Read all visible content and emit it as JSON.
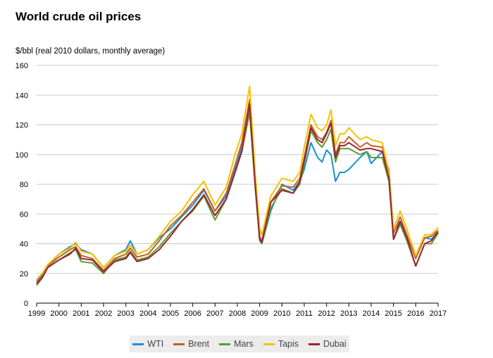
{
  "chart_data": {
    "type": "line",
    "title": "World crude oil prices",
    "ylabel": "$/bbl (real 2010 dollars, monthly average)",
    "xlabel": "",
    "ylim": [
      0,
      160
    ],
    "yticks": [
      0,
      20,
      40,
      60,
      80,
      100,
      120,
      140,
      160
    ],
    "xlim": [
      1999,
      2017
    ],
    "xticks": [
      "1999",
      "2000",
      "2001",
      "2002",
      "2003",
      "2004",
      "2005",
      "2006",
      "2007",
      "2008",
      "2009",
      "2010",
      "2011",
      "2012",
      "2013",
      "2014",
      "2015",
      "2016",
      "2017"
    ],
    "grid": true,
    "legend_position": "bottom",
    "series": [
      {
        "name": "WTI",
        "color": "#1a8fd6",
        "points": [
          [
            1999,
            15
          ],
          [
            1999.25,
            19
          ],
          [
            1999.5,
            25
          ],
          [
            2000,
            33
          ],
          [
            2000.5,
            38
          ],
          [
            2000.75,
            40
          ],
          [
            2001,
            36
          ],
          [
            2001.5,
            33
          ],
          [
            2002,
            24
          ],
          [
            2002.5,
            32
          ],
          [
            2003,
            36
          ],
          [
            2003.2,
            42
          ],
          [
            2003.5,
            33
          ],
          [
            2004,
            36
          ],
          [
            2004.5,
            44
          ],
          [
            2005,
            50
          ],
          [
            2005.5,
            58
          ],
          [
            2006,
            66
          ],
          [
            2006.5,
            76
          ],
          [
            2007,
            62
          ],
          [
            2007.5,
            72
          ],
          [
            2007.9,
            90
          ],
          [
            2008.2,
            105
          ],
          [
            2008.55,
            133
          ],
          [
            2008.8,
            80
          ],
          [
            2009,
            44
          ],
          [
            2009.1,
            40
          ],
          [
            2009.5,
            62
          ],
          [
            2010,
            80
          ],
          [
            2010.5,
            76
          ],
          [
            2010.8,
            82
          ],
          [
            2011,
            90
          ],
          [
            2011.3,
            108
          ],
          [
            2011.6,
            98
          ],
          [
            2011.8,
            95
          ],
          [
            2012,
            103
          ],
          [
            2012.2,
            100
          ],
          [
            2012.4,
            82
          ],
          [
            2012.6,
            88
          ],
          [
            2012.8,
            88
          ],
          [
            2013,
            90
          ],
          [
            2013.5,
            98
          ],
          [
            2013.8,
            102
          ],
          [
            2014,
            94
          ],
          [
            2014.5,
            102
          ],
          [
            2014.8,
            90
          ],
          [
            2015,
            48
          ],
          [
            2015.3,
            55
          ],
          [
            2015.6,
            45
          ],
          [
            2016,
            32
          ],
          [
            2016.4,
            44
          ],
          [
            2016.7,
            43
          ],
          [
            2017,
            48
          ]
        ]
      },
      {
        "name": "Brent",
        "color": "#c0622a",
        "points": [
          [
            1999,
            14
          ],
          [
            1999.25,
            18
          ],
          [
            1999.5,
            25
          ],
          [
            2000,
            31
          ],
          [
            2000.5,
            36
          ],
          [
            2000.75,
            38
          ],
          [
            2001,
            32
          ],
          [
            2001.5,
            30
          ],
          [
            2002,
            22
          ],
          [
            2002.5,
            30
          ],
          [
            2003,
            33
          ],
          [
            2003.2,
            37
          ],
          [
            2003.5,
            31
          ],
          [
            2004,
            33
          ],
          [
            2004.5,
            42
          ],
          [
            2005,
            52
          ],
          [
            2005.5,
            59
          ],
          [
            2006,
            68
          ],
          [
            2006.5,
            77
          ],
          [
            2007,
            62
          ],
          [
            2007.5,
            74
          ],
          [
            2007.9,
            93
          ],
          [
            2008.2,
            108
          ],
          [
            2008.55,
            137
          ],
          [
            2008.8,
            82
          ],
          [
            2009,
            45
          ],
          [
            2009.1,
            42
          ],
          [
            2009.5,
            68
          ],
          [
            2010,
            79
          ],
          [
            2010.5,
            78
          ],
          [
            2010.8,
            84
          ],
          [
            2011,
            98
          ],
          [
            2011.3,
            120
          ],
          [
            2011.6,
            112
          ],
          [
            2011.8,
            110
          ],
          [
            2012,
            115
          ],
          [
            2012.2,
            123
          ],
          [
            2012.4,
            100
          ],
          [
            2012.6,
            108
          ],
          [
            2012.8,
            108
          ],
          [
            2013,
            112
          ],
          [
            2013.5,
            105
          ],
          [
            2013.8,
            108
          ],
          [
            2014,
            106
          ],
          [
            2014.5,
            105
          ],
          [
            2014.8,
            85
          ],
          [
            2015,
            47
          ],
          [
            2015.3,
            58
          ],
          [
            2015.6,
            46
          ],
          [
            2016,
            30
          ],
          [
            2016.4,
            44
          ],
          [
            2016.7,
            45
          ],
          [
            2017,
            49
          ]
        ]
      },
      {
        "name": "Mars",
        "color": "#5a9e2f",
        "points": [
          [
            1999,
            12
          ],
          [
            1999.25,
            17
          ],
          [
            1999.5,
            24
          ],
          [
            2000,
            29
          ],
          [
            2000.5,
            34
          ],
          [
            2000.75,
            36
          ],
          [
            2001,
            28
          ],
          [
            2001.5,
            27
          ],
          [
            2002,
            20
          ],
          [
            2002.5,
            29
          ],
          [
            2003,
            31
          ],
          [
            2003.2,
            35
          ],
          [
            2003.5,
            29
          ],
          [
            2004,
            31
          ],
          [
            2004.5,
            38
          ],
          [
            2005,
            47
          ],
          [
            2005.5,
            55
          ],
          [
            2006,
            62
          ],
          [
            2006.5,
            72
          ],
          [
            2007,
            56
          ],
          [
            2007.5,
            70
          ],
          [
            2007.9,
            88
          ],
          [
            2008.2,
            102
          ],
          [
            2008.55,
            128
          ],
          [
            2008.8,
            78
          ],
          [
            2009,
            42
          ],
          [
            2009.1,
            40
          ],
          [
            2009.5,
            64
          ],
          [
            2010,
            77
          ],
          [
            2010.5,
            74
          ],
          [
            2010.8,
            80
          ],
          [
            2011,
            94
          ],
          [
            2011.3,
            116
          ],
          [
            2011.6,
            108
          ],
          [
            2011.8,
            105
          ],
          [
            2012,
            110
          ],
          [
            2012.2,
            117
          ],
          [
            2012.4,
            95
          ],
          [
            2012.6,
            104
          ],
          [
            2012.8,
            104
          ],
          [
            2013,
            104
          ],
          [
            2013.5,
            100
          ],
          [
            2013.8,
            102
          ],
          [
            2014,
            98
          ],
          [
            2014.5,
            98
          ],
          [
            2014.8,
            82
          ],
          [
            2015,
            43
          ],
          [
            2015.3,
            53
          ],
          [
            2015.6,
            42
          ],
          [
            2016,
            25
          ],
          [
            2016.4,
            40
          ],
          [
            2016.7,
            40
          ],
          [
            2017,
            47
          ]
        ]
      },
      {
        "name": "Tapis",
        "color": "#f5c200",
        "points": [
          [
            1999,
            16
          ],
          [
            1999.25,
            20
          ],
          [
            1999.5,
            26
          ],
          [
            2000,
            33
          ],
          [
            2000.5,
            37
          ],
          [
            2000.75,
            41
          ],
          [
            2001,
            35
          ],
          [
            2001.5,
            33
          ],
          [
            2002,
            24
          ],
          [
            2002.5,
            32
          ],
          [
            2003,
            35
          ],
          [
            2003.2,
            39
          ],
          [
            2003.5,
            33
          ],
          [
            2004,
            36
          ],
          [
            2004.5,
            45
          ],
          [
            2005,
            55
          ],
          [
            2005.5,
            62
          ],
          [
            2006,
            73
          ],
          [
            2006.5,
            82
          ],
          [
            2007,
            66
          ],
          [
            2007.5,
            78
          ],
          [
            2007.9,
            100
          ],
          [
            2008.2,
            114
          ],
          [
            2008.55,
            146
          ],
          [
            2008.8,
            88
          ],
          [
            2009,
            50
          ],
          [
            2009.1,
            46
          ],
          [
            2009.5,
            72
          ],
          [
            2010,
            84
          ],
          [
            2010.5,
            82
          ],
          [
            2010.8,
            88
          ],
          [
            2011,
            105
          ],
          [
            2011.3,
            127
          ],
          [
            2011.6,
            118
          ],
          [
            2011.8,
            116
          ],
          [
            2012,
            120
          ],
          [
            2012.2,
            130
          ],
          [
            2012.4,
            106
          ],
          [
            2012.6,
            114
          ],
          [
            2012.8,
            114
          ],
          [
            2013,
            118
          ],
          [
            2013.5,
            110
          ],
          [
            2013.8,
            112
          ],
          [
            2014,
            110
          ],
          [
            2014.5,
            108
          ],
          [
            2014.8,
            88
          ],
          [
            2015,
            50
          ],
          [
            2015.3,
            62
          ],
          [
            2015.6,
            50
          ],
          [
            2016,
            32
          ],
          [
            2016.4,
            46
          ],
          [
            2016.7,
            46
          ],
          [
            2017,
            51
          ]
        ]
      },
      {
        "name": "Dubai",
        "color": "#9b2335",
        "points": [
          [
            1999,
            13
          ],
          [
            1999.25,
            17
          ],
          [
            1999.5,
            24
          ],
          [
            2000,
            29
          ],
          [
            2000.5,
            33
          ],
          [
            2000.75,
            37
          ],
          [
            2001,
            30
          ],
          [
            2001.5,
            29
          ],
          [
            2002,
            21
          ],
          [
            2002.5,
            28
          ],
          [
            2003,
            30
          ],
          [
            2003.2,
            34
          ],
          [
            2003.5,
            28
          ],
          [
            2004,
            30
          ],
          [
            2004.5,
            36
          ],
          [
            2005,
            45
          ],
          [
            2005.5,
            55
          ],
          [
            2006,
            63
          ],
          [
            2006.5,
            73
          ],
          [
            2007,
            59
          ],
          [
            2007.5,
            70
          ],
          [
            2007.9,
            88
          ],
          [
            2008.2,
            102
          ],
          [
            2008.55,
            134
          ],
          [
            2008.8,
            80
          ],
          [
            2009,
            43
          ],
          [
            2009.1,
            41
          ],
          [
            2009.5,
            68
          ],
          [
            2010,
            76
          ],
          [
            2010.5,
            74
          ],
          [
            2010.8,
            82
          ],
          [
            2011,
            96
          ],
          [
            2011.3,
            118
          ],
          [
            2011.6,
            110
          ],
          [
            2011.8,
            108
          ],
          [
            2012,
            114
          ],
          [
            2012.2,
            121
          ],
          [
            2012.4,
            98
          ],
          [
            2012.6,
            106
          ],
          [
            2012.8,
            106
          ],
          [
            2013,
            108
          ],
          [
            2013.5,
            103
          ],
          [
            2013.8,
            104
          ],
          [
            2014,
            104
          ],
          [
            2014.5,
            102
          ],
          [
            2014.8,
            84
          ],
          [
            2015,
            43
          ],
          [
            2015.3,
            55
          ],
          [
            2015.6,
            44
          ],
          [
            2016,
            25
          ],
          [
            2016.4,
            40
          ],
          [
            2016.7,
            42
          ],
          [
            2017,
            48
          ]
        ]
      }
    ]
  }
}
